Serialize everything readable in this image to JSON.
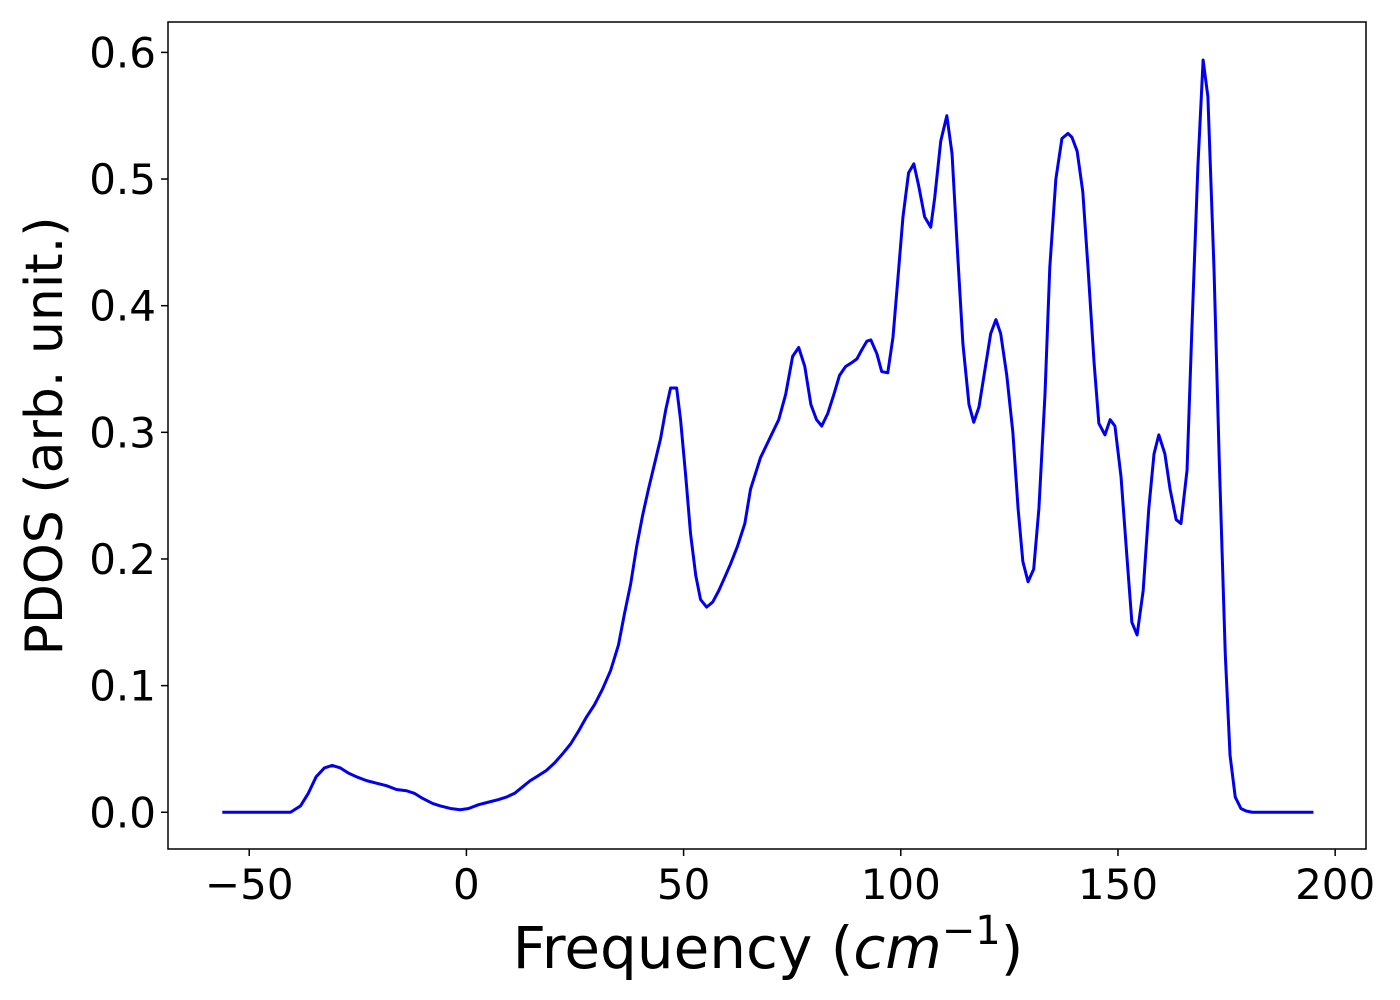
{
  "chart_data": {
    "type": "line",
    "xlabel": {
      "text": "Frequency (",
      "unit": "cm",
      "exponent": "−1",
      "close": ")"
    },
    "ylabel": "PDOS (arb. unit.)",
    "xlim": [
      -68.7,
      207.1
    ],
    "ylim": [
      -0.029,
      0.624
    ],
    "xticks": [
      {
        "value": -50,
        "label": "−50"
      },
      0,
      50,
      100,
      150,
      200
    ],
    "yticks": [
      {
        "value": 0,
        "label": "0.0"
      },
      0.1,
      0.2,
      0.3,
      0.4,
      0.5,
      0.6
    ],
    "x": [
      -56.2,
      -40.5,
      -38.2,
      -36.4,
      -34.6,
      -32.7,
      -30.9,
      -29,
      -27.2,
      -25.3,
      -23,
      -20.7,
      -18.4,
      -16.1,
      -13.8,
      -12,
      -10.1,
      -7.8,
      -6,
      -3.7,
      -1.4,
      0.5,
      2.8,
      5.1,
      7.4,
      9.2,
      11.1,
      12.9,
      14.7,
      16.6,
      18.4,
      20.3,
      22.1,
      24,
      25.8,
      27.6,
      29.5,
      31.3,
      33.2,
      35,
      36.4,
      37.8,
      39.2,
      40.6,
      41.9,
      43.3,
      44.7,
      45.9,
      47,
      48.4,
      49.3,
      50.5,
      51.6,
      52.8,
      53.9,
      55.3,
      56.7,
      58.1,
      59.4,
      60.8,
      62.4,
      64.1,
      65.4,
      67.7,
      69.1,
      70.5,
      71.9,
      73.5,
      75.1,
      76.5,
      77.9,
      79.3,
      80.6,
      81.8,
      83.2,
      84.6,
      85.9,
      87.3,
      88.7,
      89.9,
      91,
      92.2,
      93.1,
      94.5,
      95.6,
      97,
      98.2,
      99.3,
      100.5,
      101.8,
      103,
      104.1,
      105.5,
      106.9,
      107.8,
      109.2,
      110.6,
      111.8,
      113.1,
      114.3,
      115.7,
      116.8,
      118,
      119.4,
      120.7,
      121.9,
      123,
      124.4,
      125.8,
      127,
      128.1,
      129.3,
      130.6,
      131.8,
      133.2,
      134.3,
      135.7,
      137.1,
      138.5,
      139.4,
      140.6,
      141.9,
      143.1,
      144.5,
      145.6,
      147,
      148.2,
      149.3,
      150.7,
      152.1,
      153.2,
      154.4,
      155.8,
      157.1,
      158.3,
      159.4,
      160.8,
      162,
      163.4,
      164.5,
      165.9,
      167,
      168.4,
      169.6,
      170.7,
      172.1,
      173.3,
      174.7,
      175.8,
      177,
      178.3,
      179.5,
      180.9,
      195
    ],
    "series": [
      {
        "color": "#0000ee",
        "values": [
          0,
          0,
          0.005,
          0.015,
          0.028,
          0.035,
          0.037,
          0.035,
          0.031,
          0.028,
          0.025,
          0.023,
          0.021,
          0.018,
          0.017,
          0.015,
          0.011,
          0.007,
          0.005,
          0.003,
          0.002,
          0.003,
          0.006,
          0.008,
          0.01,
          0.012,
          0.015,
          0.02,
          0.025,
          0.029,
          0.033,
          0.039,
          0.046,
          0.054,
          0.064,
          0.075,
          0.085,
          0.097,
          0.112,
          0.132,
          0.157,
          0.18,
          0.21,
          0.235,
          0.255,
          0.275,
          0.295,
          0.318,
          0.335,
          0.335,
          0.31,
          0.265,
          0.22,
          0.187,
          0.168,
          0.162,
          0.166,
          0.175,
          0.185,
          0.196,
          0.21,
          0.228,
          0.255,
          0.28,
          0.29,
          0.3,
          0.31,
          0.33,
          0.36,
          0.367,
          0.352,
          0.322,
          0.31,
          0.305,
          0.315,
          0.33,
          0.345,
          0.352,
          0.355,
          0.358,
          0.365,
          0.372,
          0.373,
          0.362,
          0.348,
          0.347,
          0.375,
          0.42,
          0.47,
          0.505,
          0.512,
          0.495,
          0.47,
          0.462,
          0.485,
          0.53,
          0.55,
          0.52,
          0.44,
          0.37,
          0.322,
          0.308,
          0.32,
          0.35,
          0.378,
          0.389,
          0.378,
          0.345,
          0.3,
          0.24,
          0.198,
          0.182,
          0.192,
          0.24,
          0.33,
          0.43,
          0.5,
          0.532,
          0.536,
          0.533,
          0.522,
          0.49,
          0.43,
          0.355,
          0.307,
          0.298,
          0.31,
          0.305,
          0.265,
          0.2,
          0.15,
          0.14,
          0.175,
          0.24,
          0.283,
          0.298,
          0.283,
          0.255,
          0.231,
          0.228,
          0.27,
          0.38,
          0.51,
          0.594,
          0.565,
          0.43,
          0.28,
          0.125,
          0.045,
          0.012,
          0.003,
          0.001,
          0,
          0
        ]
      }
    ]
  }
}
